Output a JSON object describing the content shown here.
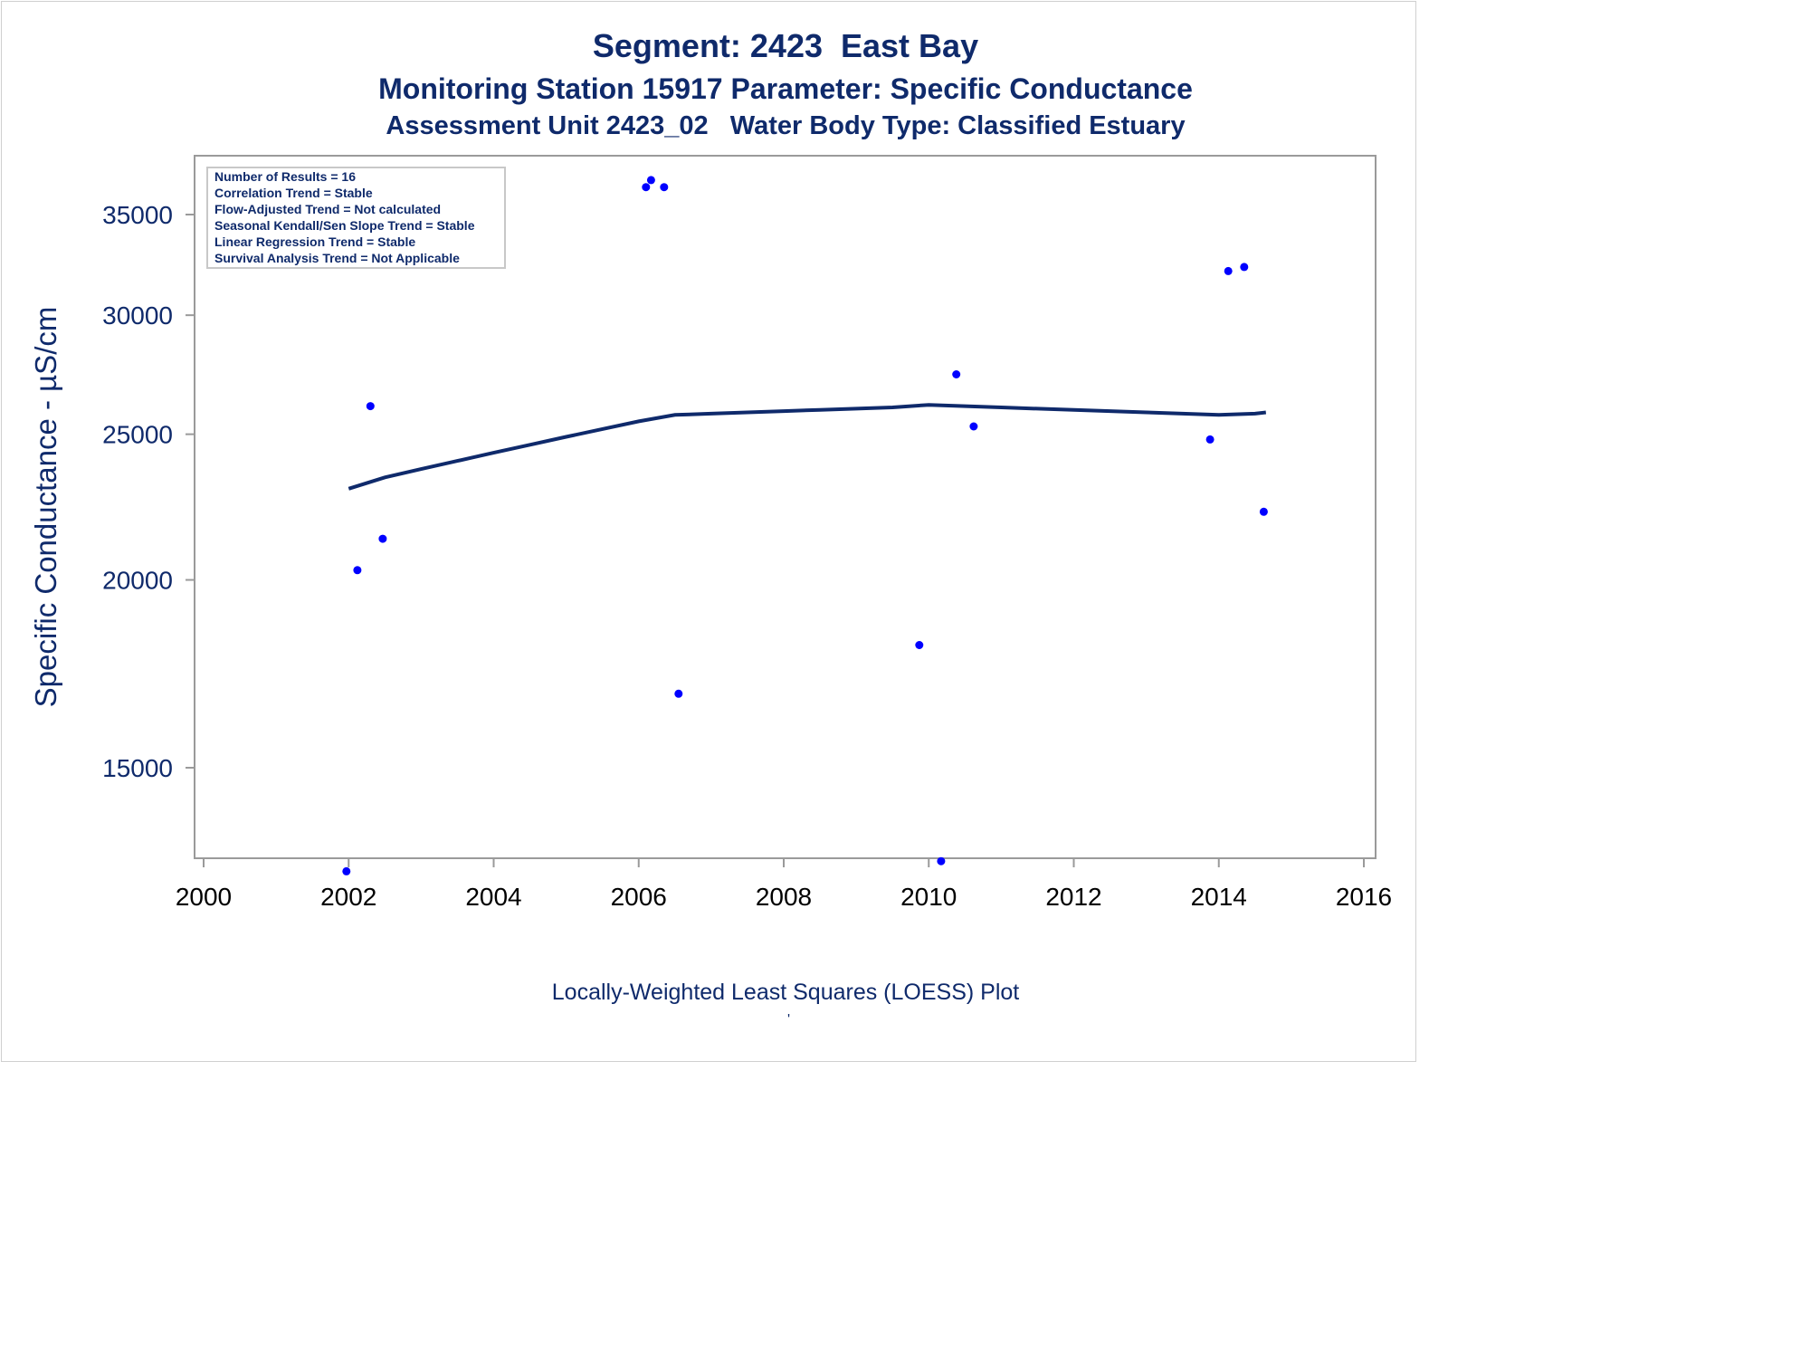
{
  "titles": {
    "line1": "Segment: 2423  East Bay",
    "line2": "Monitoring Station 15917 Parameter: Specific Conductance",
    "line3": "Assessment Unit 2423_02   Water Body Type: Classified Estuary"
  },
  "footnote": "Locally-Weighted Least Squares (LOESS) Plot",
  "footnote_mark": "'",
  "colors": {
    "title": "#0f2a6b",
    "points": "#0000ff",
    "loess": "#0f2a6b",
    "axis": "#9a9a9a",
    "tick_label": "#0f2a6b"
  },
  "chart_data": {
    "type": "scatter",
    "ylabel": "Specific Conductance -  µS/cm",
    "xlabel": "",
    "xlim": [
      2000,
      2016
    ],
    "ylim": [
      12500,
      37000
    ],
    "y_scale": "log",
    "grid": false,
    "x_ticks": [
      2000,
      2002,
      2004,
      2006,
      2008,
      2010,
      2012,
      2014,
      2016
    ],
    "y_ticks": [
      15000,
      20000,
      25000,
      30000,
      35000
    ],
    "legend_position": "top-left",
    "stats_box": [
      "Number of Results = 16",
      "Correlation Trend = Stable",
      "Flow-Adjusted Trend = Not calculated",
      "Seasonal Kendall/Sen Slope Trend = Stable",
      "Linear Regression Trend = Stable",
      "Survival Analysis Trend = Not Applicable"
    ],
    "points": [
      {
        "x": 2001.97,
        "y": 12800
      },
      {
        "x": 2002.12,
        "y": 20300
      },
      {
        "x": 2002.3,
        "y": 26100
      },
      {
        "x": 2002.47,
        "y": 21300
      },
      {
        "x": 2006.1,
        "y": 36500
      },
      {
        "x": 2006.17,
        "y": 36900
      },
      {
        "x": 2006.35,
        "y": 36500
      },
      {
        "x": 2006.55,
        "y": 16800
      },
      {
        "x": 2009.87,
        "y": 18100
      },
      {
        "x": 2010.17,
        "y": 13000
      },
      {
        "x": 2010.38,
        "y": 27400
      },
      {
        "x": 2010.62,
        "y": 25300
      },
      {
        "x": 2013.88,
        "y": 24800
      },
      {
        "x": 2014.13,
        "y": 32100
      },
      {
        "x": 2014.35,
        "y": 32300
      },
      {
        "x": 2014.62,
        "y": 22200
      }
    ],
    "loess_line": {
      "x": [
        2002.0,
        2002.5,
        2003.0,
        2003.5,
        2004.0,
        2004.5,
        2005.0,
        2005.5,
        2006.0,
        2006.5,
        2007.0,
        2007.5,
        2008.0,
        2008.5,
        2009.0,
        2009.5,
        2010.0,
        2010.5,
        2011.0,
        2011.5,
        2012.0,
        2012.5,
        2013.0,
        2013.5,
        2014.0,
        2014.5,
        2014.65
      ],
      "y": [
        23000,
        23400,
        23700,
        24000,
        24300,
        24600,
        24900,
        25200,
        25500,
        25750,
        25800,
        25850,
        25900,
        25950,
        26000,
        26050,
        26150,
        26100,
        26050,
        26000,
        25950,
        25900,
        25850,
        25800,
        25750,
        25800,
        25850
      ]
    }
  }
}
